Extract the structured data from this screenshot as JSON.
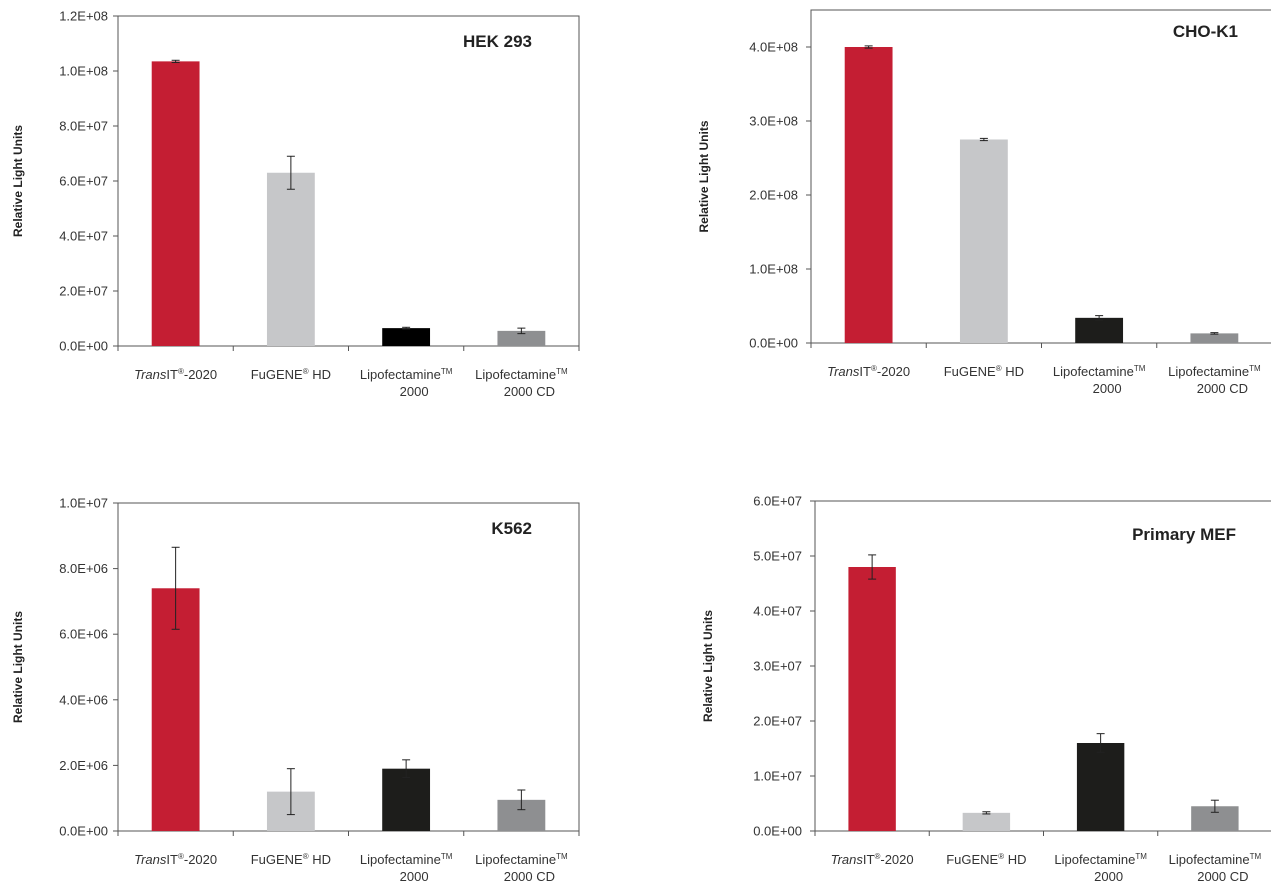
{
  "chart_data": [
    {
      "type": "bar",
      "title": "HEK 293",
      "xlabel": "",
      "ylabel": "Relative Light Units",
      "ylim": [
        0,
        120000000
      ],
      "yticks": [
        "0.0E+00",
        "2.0E+07",
        "4.0E+07",
        "6.0E+07",
        "8.0E+07",
        "1.0E+08",
        "1.2E+08"
      ],
      "categories": [
        {
          "pre": "",
          "ital": "Trans",
          "main": "IT",
          "sup": "®",
          "post": "-2020",
          "line2": ""
        },
        {
          "pre": "",
          "ital": "",
          "main": "FuGENE",
          "sup": "®",
          "post": " HD",
          "line2": ""
        },
        {
          "pre": "",
          "ital": "",
          "main": "Lipofectamine",
          "sup": "TM",
          "post": "",
          "line2": "2000"
        },
        {
          "pre": "",
          "ital": "",
          "main": "Lipofectamine",
          "sup": "TM",
          "post": "",
          "line2": "2000 CD"
        }
      ],
      "values": [
        103500000,
        63000000,
        6500000,
        5500000
      ],
      "errors": [
        400000,
        6000000,
        300000,
        1000000
      ],
      "colors": [
        "#c41e33",
        "#c6c7c9",
        "#000000",
        "#8e8f91"
      ],
      "grid": false,
      "title_position": "top-right"
    },
    {
      "type": "bar",
      "title": "CHO-K1",
      "xlabel": "",
      "ylabel": "Relative Light Units",
      "ylim": [
        0,
        450000000
      ],
      "yticks": [
        "0.0E+00",
        "1.0E+08",
        "2.0E+08",
        "3.0E+08",
        "4.0E+08"
      ],
      "categories": [
        {
          "pre": "",
          "ital": "Trans",
          "main": "IT",
          "sup": "®",
          "post": "-2020",
          "line2": ""
        },
        {
          "pre": "",
          "ital": "",
          "main": "FuGENE",
          "sup": "®",
          "post": " HD",
          "line2": ""
        },
        {
          "pre": "",
          "ital": "",
          "main": "Lipofectamine",
          "sup": "TM",
          "post": "",
          "line2": "2000"
        },
        {
          "pre": "",
          "ital": "",
          "main": "Lipofectamine",
          "sup": "TM",
          "post": "",
          "line2": "2000 CD"
        }
      ],
      "values": [
        400000000,
        275000000,
        34000000,
        13000000
      ],
      "errors": [
        1500000,
        1500000,
        3000000,
        1000000
      ],
      "colors": [
        "#c41e33",
        "#c6c7c9",
        "#1d1d1b",
        "#8e8f91"
      ],
      "grid": false,
      "title_position": "top-right"
    },
    {
      "type": "bar",
      "title": "K562",
      "xlabel": "",
      "ylabel": "Relative Light Units",
      "ylim": [
        0,
        10000000
      ],
      "yticks": [
        "0.0E+00",
        "2.0E+06",
        "4.0E+06",
        "6.0E+06",
        "8.0E+06",
        "1.0E+07"
      ],
      "categories": [
        {
          "pre": "",
          "ital": "Trans",
          "main": "IT",
          "sup": "®",
          "post": "-2020",
          "line2": ""
        },
        {
          "pre": "",
          "ital": "",
          "main": "FuGENE",
          "sup": "®",
          "post": " HD",
          "line2": ""
        },
        {
          "pre": "",
          "ital": "",
          "main": "Lipofectamine",
          "sup": "TM",
          "post": "",
          "line2": "2000"
        },
        {
          "pre": "",
          "ital": "",
          "main": "Lipofectamine",
          "sup": "TM",
          "post": "",
          "line2": "2000 CD"
        }
      ],
      "values": [
        7400000,
        1200000,
        1900000,
        950000
      ],
      "errors": [
        1250000,
        700000,
        270000,
        300000
      ],
      "colors": [
        "#c41e33",
        "#c6c7c9",
        "#1d1d1b",
        "#8e8f91"
      ],
      "grid": false,
      "title_position": "top-right"
    },
    {
      "type": "bar",
      "title": "Primary MEF",
      "xlabel": "",
      "ylabel": "Relative Light Units",
      "ylim": [
        0,
        60000000
      ],
      "yticks": [
        "0.0E+00",
        "1.0E+07",
        "2.0E+07",
        "3.0E+07",
        "4.0E+07",
        "5.0E+07",
        "6.0E+07"
      ],
      "categories": [
        {
          "pre": "",
          "ital": "Trans",
          "main": "IT",
          "sup": "®",
          "post": "-2020",
          "line2": ""
        },
        {
          "pre": "",
          "ital": "",
          "main": "FuGENE",
          "sup": "®",
          "post": " HD",
          "line2": ""
        },
        {
          "pre": "",
          "ital": "",
          "main": "Lipofectamine",
          "sup": "TM",
          "post": "",
          "line2": "2000"
        },
        {
          "pre": "",
          "ital": "",
          "main": "Lipofectamine",
          "sup": "TM",
          "post": "",
          "line2": "2000 CD"
        }
      ],
      "values": [
        48000000,
        3300000,
        16000000,
        4500000
      ],
      "errors": [
        2200000,
        200000,
        1700000,
        1100000
      ],
      "colors": [
        "#c41e33",
        "#c6c7c9",
        "#1d1d1b",
        "#8e8f91"
      ],
      "grid": false,
      "title_position": "top-right"
    }
  ]
}
